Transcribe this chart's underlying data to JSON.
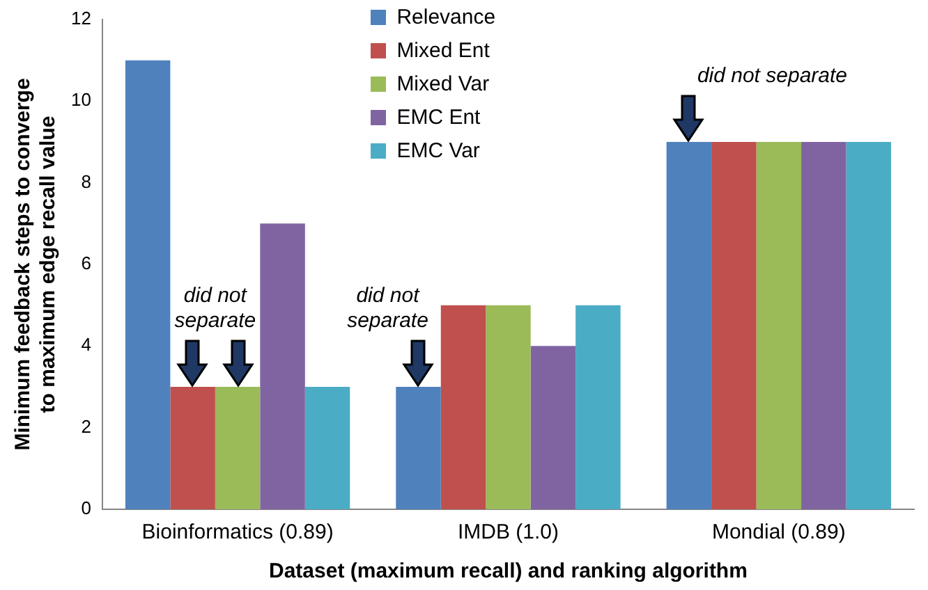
{
  "chart_data": {
    "type": "bar",
    "xlabel": "Dataset (maximum recall) and ranking algorithm",
    "ylabel": "Minimum feedback steps to converge to maximum edge recall value",
    "categories": [
      "Bioinformatics (0.89)",
      "IMDB (1.0)",
      "Mondial (0.89)"
    ],
    "series": [
      {
        "name": "Relevance",
        "color": "#4f81bd",
        "values": [
          11,
          3,
          9
        ]
      },
      {
        "name": "Mixed Ent",
        "color": "#c0504d",
        "values": [
          3,
          5,
          9
        ]
      },
      {
        "name": "Mixed Var",
        "color": "#9bbb59",
        "values": [
          3,
          5,
          9
        ]
      },
      {
        "name": "EMC Ent",
        "color": "#8064a2",
        "values": [
          7,
          4,
          9
        ]
      },
      {
        "name": "EMC Var",
        "color": "#4bacc6",
        "values": [
          3,
          5,
          9
        ]
      }
    ],
    "ylim": [
      0,
      12
    ],
    "yticks": [
      0,
      2,
      4,
      6,
      8,
      10,
      12
    ],
    "grid": false,
    "legend": "top",
    "annotations": [
      {
        "text": "did not separate",
        "x": "Bioinformatics (0.89)",
        "y": 3
      },
      "did not separate",
      {
        "text": "did not separate",
        "x": "Mondial (0.89)",
        "y": 9
      }
    ]
  }
}
